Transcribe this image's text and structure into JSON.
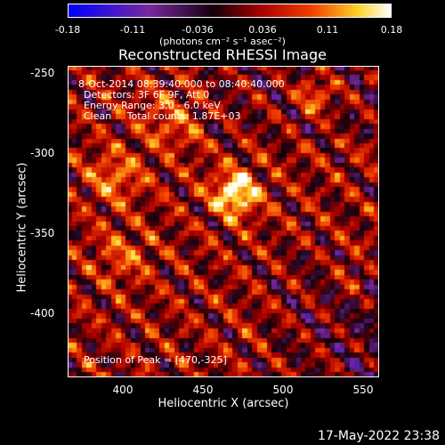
{
  "colorbar": {
    "ticks": [
      "-0.18",
      "-0.11",
      "-0.036",
      "0.036",
      "0.11",
      "0.18"
    ],
    "units": "(photons cm⁻² s⁻¹ asec⁻²)"
  },
  "title": "Reconstructed RHESSI Image",
  "info": {
    "time": "8-Oct-2014 08:39:40.000 to 08:40:40.000",
    "detectors": "Detectors: 3F 6F 9F, Att 0",
    "energy": "Energy Range: 3.0 - 6.0 keV",
    "method": "Clean     Total counts: 1.87E+03",
    "peak": "Position of Peak = [470,-325]"
  },
  "axes": {
    "xlabel": "Heliocentric X (arcsec)",
    "ylabel": "Heliocentric Y (arcsec)",
    "xticks": [
      "400",
      "450",
      "500",
      "550"
    ],
    "yticks": [
      "-250",
      "-300",
      "-350",
      "-400"
    ],
    "xlim": [
      365,
      560
    ],
    "ylim": [
      -440,
      -245
    ]
  },
  "timestamp": "17-May-2022 23:38",
  "colors": {
    "background": "#000000",
    "peak": "#ffffcc",
    "map_high": "#ff4a00",
    "map_mid": "#b00000",
    "map_low": "#2a0010",
    "negative": "#4a2a7a"
  }
}
